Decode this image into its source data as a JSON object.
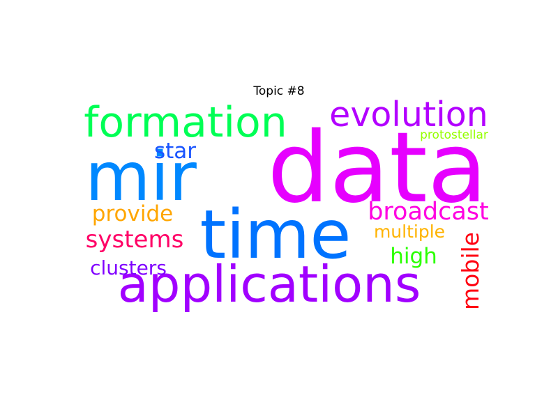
{
  "title": "Topic #8",
  "words": [
    {
      "text": "data",
      "color": "#e600ff",
      "weight": 1.0
    },
    {
      "text": "mir",
      "color": "#0088ff",
      "weight": 0.72
    },
    {
      "text": "time",
      "color": "#0073ff",
      "weight": 0.68
    },
    {
      "text": "applications",
      "color": "#a100ff",
      "weight": 0.55
    },
    {
      "text": "formation",
      "color": "#00ff55",
      "weight": 0.46
    },
    {
      "text": "evolution",
      "color": "#b300ff",
      "weight": 0.4
    },
    {
      "text": "broadcast",
      "color": "#ff00e1",
      "weight": 0.3
    },
    {
      "text": "systems",
      "color": "#ff0066",
      "weight": 0.28
    },
    {
      "text": "mobile",
      "color": "#ff0011",
      "weight": 0.28
    },
    {
      "text": "star",
      "color": "#1a55ff",
      "weight": 0.26
    },
    {
      "text": "provide",
      "color": "#ffa600",
      "weight": 0.26
    },
    {
      "text": "high",
      "color": "#2bff00",
      "weight": 0.26
    },
    {
      "text": "clusters",
      "color": "#8000ff",
      "weight": 0.24
    },
    {
      "text": "multiple",
      "color": "#ffb300",
      "weight": 0.22
    },
    {
      "text": "protostellar",
      "color": "#95ff00",
      "weight": 0.15
    }
  ]
}
